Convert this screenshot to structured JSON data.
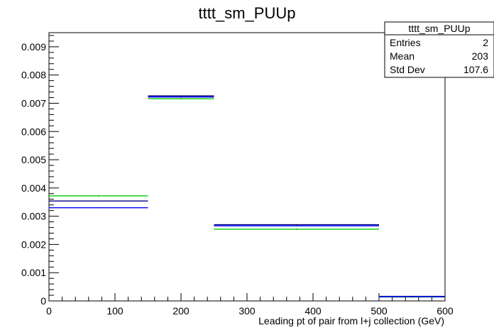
{
  "chart_data": {
    "type": "histogram",
    "title": "tttt_sm_PUUp",
    "xlabel": "Leading pt of pair from l+j collection (GeV)",
    "ylabel": "",
    "xlim": [
      0,
      600
    ],
    "ylim": [
      0,
      0.0095
    ],
    "x_ticks": [
      0,
      100,
      200,
      300,
      400,
      500,
      600
    ],
    "x_tick_labels": [
      "0",
      "100",
      "200",
      "300",
      "400",
      "500",
      "600"
    ],
    "y_ticks": [
      0,
      0.001,
      0.002,
      0.003,
      0.004,
      0.005,
      0.006,
      0.007,
      0.008,
      0.009
    ],
    "y_tick_labels": [
      "0",
      "0.001",
      "0.002",
      "0.003",
      "0.004",
      "0.005",
      "0.006",
      "0.007",
      "0.008",
      "0.009"
    ],
    "bin_edges": [
      0,
      150,
      250,
      500,
      600
    ],
    "series": [
      {
        "color": "#00cc00",
        "values": [
          0.00372,
          0.00716,
          0.00254,
          0.00014
        ]
      },
      {
        "color": "#000080",
        "values": [
          0.00354,
          0.00726,
          0.0027,
          0.00016
        ]
      },
      {
        "color": "#0000ff",
        "values": [
          0.0033,
          0.00722,
          0.00266,
          0.00015
        ]
      }
    ],
    "stats_box": {
      "title": "tttt_sm_PUUp",
      "rows": [
        {
          "label": "Entries",
          "value": "2"
        },
        {
          "label": "Mean",
          "value": "203"
        },
        {
          "label": "Std Dev",
          "value": "107.6"
        }
      ]
    }
  }
}
